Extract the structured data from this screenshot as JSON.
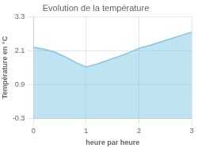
{
  "chart_data": {
    "type": "area",
    "title": "Evolution de la température",
    "xlabel": "heure par heure",
    "ylabel": "Température en °C",
    "x": [
      0,
      0.2,
      0.4,
      0.6,
      0.8,
      1.0,
      1.2,
      1.4,
      1.6,
      1.8,
      2.0,
      2.2,
      2.4,
      2.6,
      2.8,
      3.0
    ],
    "values": [
      2.22,
      2.15,
      2.05,
      1.88,
      1.68,
      1.52,
      1.62,
      1.75,
      1.88,
      2.02,
      2.18,
      2.28,
      2.4,
      2.52,
      2.64,
      2.75
    ],
    "color": "#7ec8e3",
    "xlim": [
      0,
      3
    ],
    "ylim": [
      -0.3,
      3.3
    ],
    "xticks": [
      0,
      1,
      2,
      3
    ],
    "yticks": [
      -0.3,
      0.9,
      2.1,
      3.3
    ],
    "grid": true
  }
}
